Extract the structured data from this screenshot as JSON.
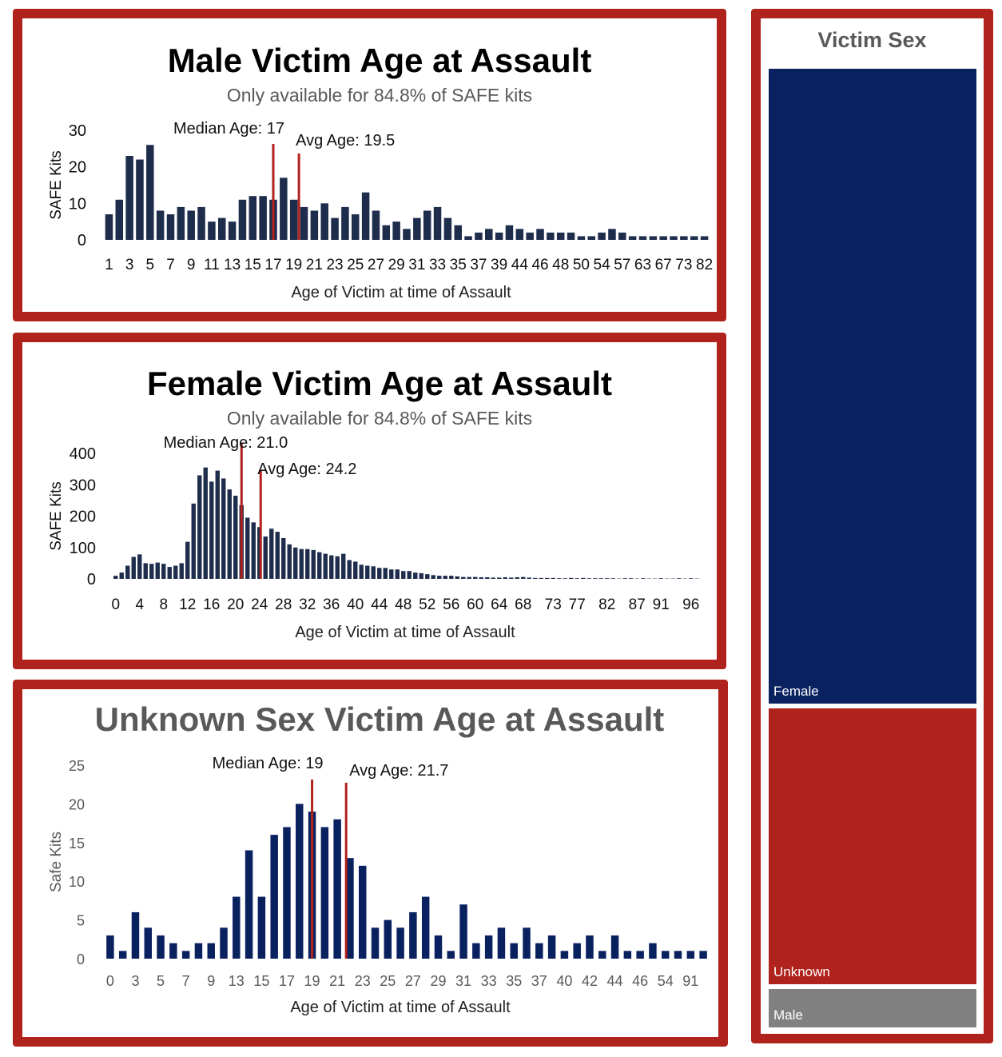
{
  "colors": {
    "frame": "#b0221c",
    "bar_dark": "#1f2d4d",
    "bar_navy": "#0a2160",
    "marker": "#b0221c",
    "female": "#0a2160",
    "unknown": "#b0221c",
    "male": "#808080"
  },
  "chart_data": [
    {
      "type": "bar",
      "title": "Male Victim Age at Assault",
      "subtitle": "Only available for 84.8% of SAFE kits",
      "xlabel": "Age of Victim at time of Assault",
      "ylabel": "SAFE Kits",
      "ylim": [
        0,
        30
      ],
      "yticks": [
        "0",
        "10",
        "20",
        "30"
      ],
      "grid": false,
      "categories": [
        "1",
        "2",
        "3",
        "4",
        "5",
        "6",
        "7",
        "8",
        "9",
        "10",
        "11",
        "12",
        "13",
        "14",
        "15",
        "16",
        "17",
        "18",
        "19",
        "20",
        "21",
        "22",
        "23",
        "24",
        "25",
        "26",
        "27",
        "28",
        "29",
        "30",
        "31",
        "32",
        "33",
        "34",
        "35",
        "36",
        "37",
        "38",
        "39",
        "40",
        "44",
        "45",
        "46",
        "47",
        "48",
        "49",
        "50",
        "53",
        "54",
        "55",
        "57",
        "58",
        "63",
        "64",
        "67",
        "68",
        "73",
        "80",
        "82"
      ],
      "tick_labels": [
        "1",
        "3",
        "5",
        "7",
        "9",
        "11",
        "13",
        "15",
        "17",
        "19",
        "21",
        "23",
        "25",
        "27",
        "29",
        "31",
        "33",
        "35",
        "37",
        "39",
        "44",
        "46",
        "48",
        "50",
        "54",
        "57",
        "63",
        "67",
        "73",
        "82"
      ],
      "values": [
        7,
        11,
        23,
        22,
        26,
        8,
        7,
        9,
        8,
        9,
        5,
        6,
        5,
        11,
        12,
        12,
        11,
        17,
        11,
        9,
        8,
        10,
        6,
        9,
        7,
        13,
        8,
        4,
        5,
        3,
        6,
        8,
        9,
        6,
        4,
        1,
        2,
        3,
        2,
        4,
        3,
        2,
        3,
        2,
        2,
        2,
        1,
        1,
        2,
        3,
        2,
        1,
        1,
        1,
        1,
        1,
        1,
        1,
        1
      ],
      "markers": [
        {
          "label": "Median Age: 17",
          "value": 17
        },
        {
          "label": "Avg Age: 19.5",
          "value": 19.5
        }
      ]
    },
    {
      "type": "bar",
      "title": "Female Victim Age at Assault",
      "subtitle": "Only available for 84.8% of SAFE kits",
      "xlabel": "Age of Victim at time of Assault",
      "ylabel": "SAFE Kits",
      "ylim": [
        0,
        400
      ],
      "yticks": [
        "0",
        "100",
        "200",
        "300",
        "400"
      ],
      "grid": false,
      "categories": [
        "0",
        "1",
        "2",
        "3",
        "4",
        "5",
        "6",
        "7",
        "8",
        "9",
        "10",
        "11",
        "12",
        "13",
        "14",
        "15",
        "16",
        "17",
        "18",
        "19",
        "20",
        "21",
        "22",
        "23",
        "24",
        "25",
        "26",
        "27",
        "28",
        "29",
        "30",
        "31",
        "32",
        "33",
        "34",
        "35",
        "36",
        "37",
        "38",
        "39",
        "40",
        "41",
        "42",
        "43",
        "44",
        "45",
        "46",
        "47",
        "48",
        "49",
        "50",
        "51",
        "52",
        "53",
        "54",
        "55",
        "56",
        "57",
        "58",
        "59",
        "60",
        "61",
        "62",
        "63",
        "64",
        "65",
        "66",
        "67",
        "68",
        "69",
        "70",
        "71",
        "72",
        "73",
        "74",
        "75",
        "76",
        "77",
        "78",
        "79",
        "80",
        "81",
        "82",
        "83",
        "84",
        "85",
        "86",
        "87",
        "88",
        "89",
        "90",
        "91",
        "92",
        "93",
        "94",
        "95",
        "96",
        "97"
      ],
      "tick_labels": [
        "0",
        "4",
        "8",
        "12",
        "16",
        "20",
        "24",
        "28",
        "32",
        "36",
        "40",
        "44",
        "48",
        "52",
        "56",
        "60",
        "64",
        "68",
        "73",
        "77",
        "82",
        "87",
        "91",
        "96"
      ],
      "values": [
        10,
        20,
        42,
        70,
        78,
        50,
        48,
        52,
        48,
        38,
        42,
        50,
        118,
        240,
        330,
        355,
        310,
        345,
        320,
        285,
        265,
        235,
        195,
        180,
        165,
        135,
        160,
        150,
        130,
        110,
        100,
        95,
        95,
        92,
        85,
        80,
        75,
        72,
        80,
        60,
        55,
        45,
        42,
        40,
        35,
        35,
        30,
        30,
        25,
        25,
        20,
        18,
        15,
        12,
        10,
        10,
        10,
        8,
        6,
        6,
        6,
        5,
        5,
        4,
        4,
        5,
        4,
        5,
        6,
        4,
        3,
        3,
        3,
        3,
        2,
        2,
        3,
        2,
        3,
        2,
        2,
        2,
        2,
        2,
        1,
        2,
        2,
        1,
        2,
        1,
        1,
        2,
        1,
        1,
        2,
        1,
        2,
        1
      ],
      "markers": [
        {
          "label": "Median Age: 21.0",
          "value": 21.0
        },
        {
          "label": "Avg Age: 24.2",
          "value": 24.2
        }
      ]
    },
    {
      "type": "bar",
      "title": "Unknown Sex Victim Age at Assault",
      "xlabel": "Age of Victim at time of Assault",
      "ylabel": "Safe Kits",
      "ylim": [
        0,
        25
      ],
      "yticks": [
        "0",
        "5",
        "10",
        "15",
        "20",
        "25"
      ],
      "grid": false,
      "categories": [
        "0",
        "2",
        "3",
        "4",
        "5",
        "6",
        "7",
        "8",
        "9",
        "12",
        "13",
        "14",
        "15",
        "16",
        "17",
        "18",
        "19",
        "20",
        "21",
        "22",
        "23",
        "24",
        "25",
        "26",
        "27",
        "28",
        "29",
        "30",
        "31",
        "32",
        "33",
        "34",
        "35",
        "36",
        "37",
        "38",
        "40",
        "41",
        "42",
        "43",
        "44",
        "45",
        "46",
        "50",
        "54",
        "58",
        "91",
        "94"
      ],
      "tick_labels": [
        "0",
        "3",
        "5",
        "7",
        "9",
        "13",
        "15",
        "17",
        "19",
        "21",
        "23",
        "25",
        "27",
        "29",
        "31",
        "33",
        "35",
        "37",
        "40",
        "42",
        "44",
        "46",
        "54",
        "91"
      ],
      "values": [
        3,
        1,
        6,
        4,
        3,
        2,
        1,
        2,
        2,
        4,
        8,
        14,
        8,
        16,
        17,
        20,
        19,
        17,
        18,
        13,
        12,
        4,
        5,
        4,
        6,
        8,
        3,
        1,
        7,
        2,
        3,
        4,
        2,
        4,
        2,
        3,
        1,
        2,
        3,
        1,
        3,
        1,
        1,
        2,
        1,
        1,
        1,
        1
      ],
      "markers": [
        {
          "label": "Median Age: 19",
          "value": 19
        },
        {
          "label": "Avg Age: 21.7",
          "value": 21.7
        }
      ]
    },
    {
      "type": "treemap",
      "title": "Victim Sex",
      "categories": [
        "Female",
        "Unknown",
        "Male"
      ],
      "values": [
        3530,
        1535,
        215
      ]
    }
  ]
}
